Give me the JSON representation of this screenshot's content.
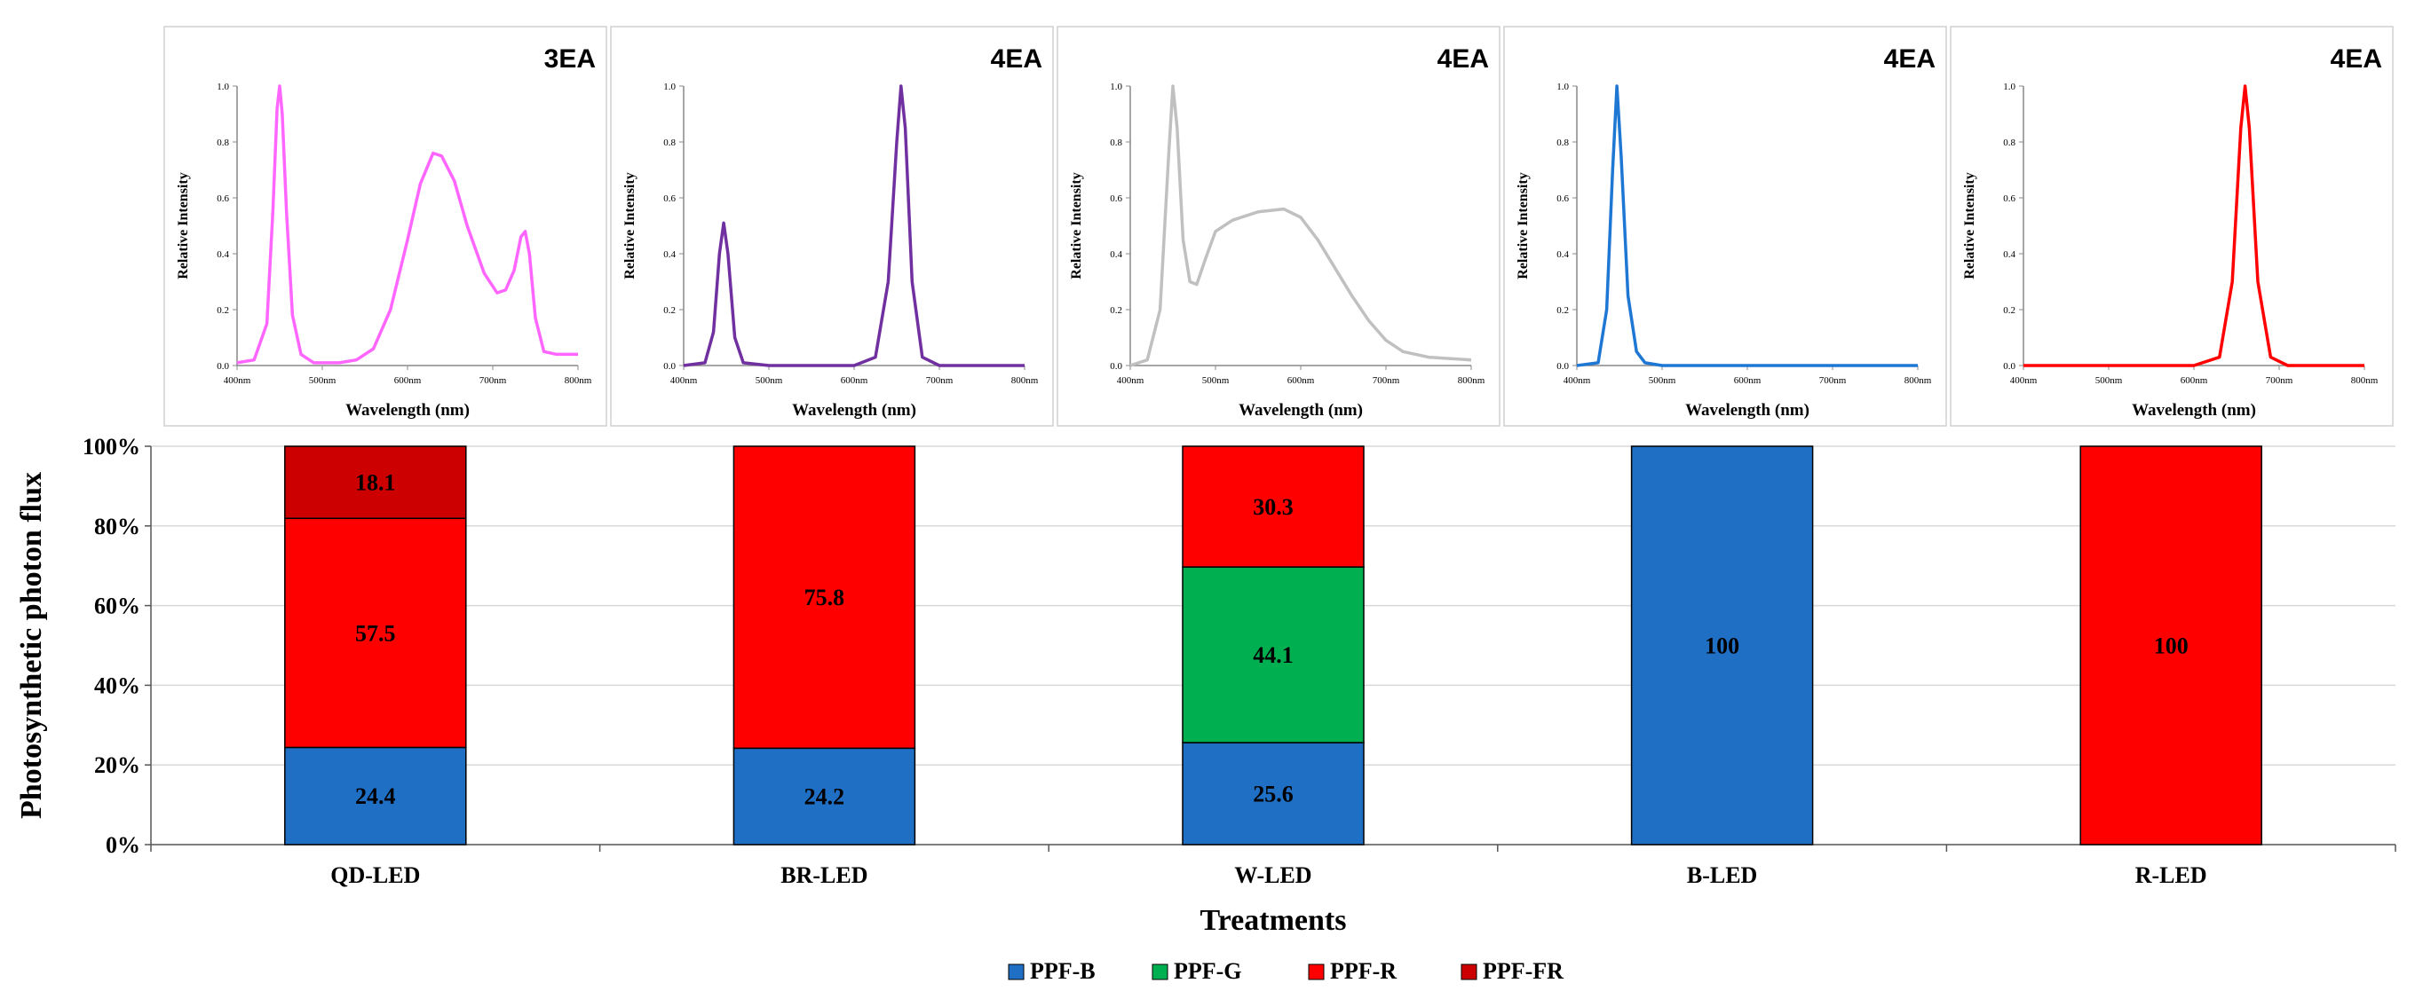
{
  "spectra": [
    {
      "treatment": "QD-LED",
      "count_label": "3EA",
      "color": "#ff66ff",
      "points": [
        [
          400,
          0.01
        ],
        [
          420,
          0.02
        ],
        [
          435,
          0.15
        ],
        [
          442,
          0.55
        ],
        [
          447,
          0.92
        ],
        [
          450,
          1.0
        ],
        [
          453,
          0.9
        ],
        [
          458,
          0.55
        ],
        [
          465,
          0.18
        ],
        [
          475,
          0.04
        ],
        [
          490,
          0.01
        ],
        [
          520,
          0.01
        ],
        [
          540,
          0.02
        ],
        [
          560,
          0.06
        ],
        [
          580,
          0.2
        ],
        [
          600,
          0.45
        ],
        [
          615,
          0.65
        ],
        [
          630,
          0.76
        ],
        [
          640,
          0.75
        ],
        [
          655,
          0.66
        ],
        [
          670,
          0.5
        ],
        [
          690,
          0.33
        ],
        [
          705,
          0.26
        ],
        [
          715,
          0.27
        ],
        [
          725,
          0.34
        ],
        [
          733,
          0.46
        ],
        [
          738,
          0.48
        ],
        [
          743,
          0.4
        ],
        [
          750,
          0.17
        ],
        [
          760,
          0.05
        ],
        [
          775,
          0.04
        ],
        [
          800,
          0.04
        ]
      ]
    },
    {
      "treatment": "BR-LED",
      "count_label": "4EA",
      "color": "#7030a0",
      "points": [
        [
          400,
          0.0
        ],
        [
          425,
          0.01
        ],
        [
          435,
          0.12
        ],
        [
          442,
          0.4
        ],
        [
          447,
          0.51
        ],
        [
          452,
          0.4
        ],
        [
          460,
          0.1
        ],
        [
          470,
          0.01
        ],
        [
          500,
          0.0
        ],
        [
          600,
          0.0
        ],
        [
          625,
          0.03
        ],
        [
          640,
          0.3
        ],
        [
          650,
          0.8
        ],
        [
          655,
          1.0
        ],
        [
          660,
          0.85
        ],
        [
          668,
          0.3
        ],
        [
          680,
          0.03
        ],
        [
          700,
          0.0
        ],
        [
          800,
          0.0
        ]
      ]
    },
    {
      "treatment": "W-LED",
      "count_label": "4EA",
      "color": "#c0c0c0",
      "points": [
        [
          400,
          0.0
        ],
        [
          420,
          0.02
        ],
        [
          435,
          0.2
        ],
        [
          445,
          0.75
        ],
        [
          450,
          1.0
        ],
        [
          455,
          0.85
        ],
        [
          462,
          0.45
        ],
        [
          470,
          0.3
        ],
        [
          478,
          0.29
        ],
        [
          488,
          0.38
        ],
        [
          500,
          0.48
        ],
        [
          520,
          0.52
        ],
        [
          550,
          0.55
        ],
        [
          580,
          0.56
        ],
        [
          600,
          0.53
        ],
        [
          620,
          0.45
        ],
        [
          640,
          0.35
        ],
        [
          660,
          0.25
        ],
        [
          680,
          0.16
        ],
        [
          700,
          0.09
        ],
        [
          720,
          0.05
        ],
        [
          750,
          0.03
        ],
        [
          800,
          0.02
        ]
      ]
    },
    {
      "treatment": "B-LED",
      "count_label": "4EA",
      "color": "#1f77d4",
      "points": [
        [
          400,
          0.0
        ],
        [
          425,
          0.01
        ],
        [
          435,
          0.2
        ],
        [
          442,
          0.7
        ],
        [
          447,
          1.0
        ],
        [
          452,
          0.75
        ],
        [
          460,
          0.25
        ],
        [
          470,
          0.05
        ],
        [
          480,
          0.01
        ],
        [
          500,
          0.0
        ],
        [
          800,
          0.0
        ]
      ]
    },
    {
      "treatment": "R-LED",
      "count_label": "4EA",
      "color": "#ff0000",
      "points": [
        [
          400,
          0.0
        ],
        [
          600,
          0.0
        ],
        [
          630,
          0.03
        ],
        [
          645,
          0.3
        ],
        [
          655,
          0.85
        ],
        [
          660,
          1.0
        ],
        [
          665,
          0.85
        ],
        [
          675,
          0.3
        ],
        [
          690,
          0.03
        ],
        [
          710,
          0.0
        ],
        [
          800,
          0.0
        ]
      ]
    }
  ],
  "spectrum_axes": {
    "xlabel": "Wavelength (nm)",
    "ylabel": "Relative Intensity",
    "x_ticks": [
      "400nm",
      "500nm",
      "600nm",
      "700nm",
      "800nm"
    ],
    "y_ticks": [
      "0.0",
      "0.2",
      "0.4",
      "0.6",
      "0.8",
      "1.0"
    ],
    "xlim": [
      400,
      800
    ],
    "ylim": [
      0,
      1
    ]
  },
  "chart_data": {
    "type": "bar",
    "stacked": true,
    "categories": [
      "QD-LED",
      "BR-LED",
      "W-LED",
      "B-LED",
      "R-LED"
    ],
    "series": [
      {
        "name": "PPF-B",
        "color": "#1f6fc5",
        "values": [
          24.4,
          24.2,
          25.6,
          100,
          0
        ]
      },
      {
        "name": "PPF-G",
        "color": "#00b050",
        "values": [
          0,
          0,
          44.1,
          0,
          0
        ]
      },
      {
        "name": "PPF-R",
        "color": "#ff0000",
        "values": [
          57.5,
          75.8,
          30.3,
          0,
          100
        ]
      },
      {
        "name": "PPF-FR",
        "color": "#cc0000",
        "values": [
          18.1,
          0,
          0,
          0,
          0
        ]
      }
    ],
    "title": "",
    "xlabel": "Treatments",
    "ylabel": "Photosynthetic photon flux",
    "y_ticks": [
      "0%",
      "20%",
      "40%",
      "60%",
      "80%",
      "100%"
    ],
    "ylim": [
      0,
      100
    ],
    "legend": "bottom"
  }
}
